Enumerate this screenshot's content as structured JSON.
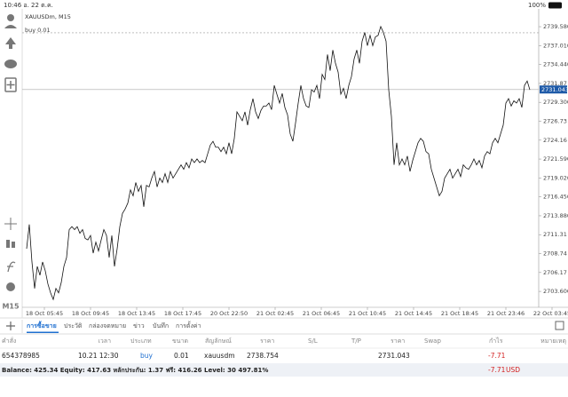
{
  "status_bar": {
    "time_date": "10:46  อ. 22 ต.ค.",
    "battery": "100%"
  },
  "sidebar": {
    "timeframe": "M15"
  },
  "chart_data": {
    "type": "line",
    "title": "XAUUSDm, M15",
    "order_line": {
      "label": "buy 0.01",
      "value": 2738.754
    },
    "price_line": {
      "value": 2731.043
    },
    "color": "#111111",
    "ylim": [
      2701.56,
      2742.0
    ],
    "yticks": [
      {
        "value": 2739.58,
        "label": "2739.580"
      },
      {
        "value": 2737.01,
        "label": "2737.010"
      },
      {
        "value": 2734.44,
        "label": "2734.440"
      },
      2731.87,
      {
        "value": 2729.3,
        "label": "2729.300"
      },
      2726.73,
      2724.16,
      {
        "value": 2721.59,
        "label": "2721.590"
      },
      {
        "value": 2719.02,
        "label": "2719.020"
      },
      {
        "value": 2716.45,
        "label": "2716.450"
      },
      {
        "value": 2713.88,
        "label": "2713.880"
      },
      2711.31,
      2708.74,
      2706.17,
      {
        "value": 2703.6,
        "label": "2703.600"
      }
    ],
    "x_labels": [
      "18 Oct 05:45",
      "18 Oct 09:45",
      "18 Oct 13:45",
      "18 Oct 17:45",
      "20 Oct 22:50",
      "21 Oct 02:45",
      "21 Oct 06:45",
      "21 Oct 10:45",
      "21 Oct 14:45",
      "21 Oct 18:45",
      "21 Oct 23:46",
      "22 Oct 03:45"
    ],
    "values": [
      2709.4,
      2712.7,
      2707.6,
      2704.0,
      2707.0,
      2705.8,
      2707.6,
      2706.4,
      2704.6,
      2703.4,
      2702.5,
      2704.0,
      2703.4,
      2704.8,
      2707.0,
      2708.2,
      2712.0,
      2712.4,
      2712.0,
      2712.4,
      2711.5,
      2712.0,
      2710.8,
      2710.6,
      2711.2,
      2708.8,
      2710.3,
      2709.1,
      2710.6,
      2712.0,
      2711.2,
      2708.2,
      2711.2,
      2707.0,
      2709.4,
      2712.4,
      2714.2,
      2714.8,
      2715.6,
      2717.4,
      2716.6,
      2718.4,
      2717.2,
      2718.0,
      2715.1,
      2718.0,
      2717.8,
      2719.0,
      2719.9,
      2717.8,
      2719.0,
      2718.4,
      2719.6,
      2718.4,
      2719.9,
      2719.0,
      2719.6,
      2720.2,
      2720.8,
      2720.2,
      2721.1,
      2720.4,
      2721.6,
      2721.1,
      2721.6,
      2721.1,
      2721.4,
      2721.1,
      2722.3,
      2723.5,
      2724.0,
      2723.2,
      2723.2,
      2722.6,
      2723.2,
      2722.3,
      2723.8,
      2722.3,
      2724.4,
      2728.0,
      2727.4,
      2726.8,
      2728.0,
      2726.2,
      2728.3,
      2729.8,
      2728.0,
      2727.1,
      2728.2,
      2728.8,
      2728.8,
      2729.2,
      2728.3,
      2731.6,
      2730.4,
      2729.2,
      2730.5,
      2728.6,
      2727.6,
      2725.0,
      2724.0,
      2726.5,
      2729.2,
      2731.6,
      2729.8,
      2728.8,
      2728.6,
      2731.0,
      2730.7,
      2731.6,
      2729.8,
      2733.1,
      2732.4,
      2735.8,
      2733.6,
      2736.4,
      2734.6,
      2733.4,
      2730.4,
      2731.2,
      2729.8,
      2731.6,
      2732.8,
      2735.2,
      2736.4,
      2734.6,
      2737.6,
      2738.8,
      2737.0,
      2738.4,
      2737.0,
      2738.2,
      2738.4,
      2739.6,
      2738.8,
      2737.6,
      2731.0,
      2727.4,
      2720.8,
      2723.8,
      2720.8,
      2721.6,
      2720.8,
      2722.0,
      2719.9,
      2721.4,
      2722.6,
      2723.8,
      2724.4,
      2724.0,
      2722.6,
      2722.3,
      2720.2,
      2719.0,
      2717.8,
      2716.6,
      2717.2,
      2719.0,
      2719.6,
      2720.2,
      2719.0,
      2719.6,
      2720.2,
      2719.2,
      2720.8,
      2720.4,
      2720.2,
      2720.8,
      2721.6,
      2720.8,
      2721.4,
      2720.4,
      2722.0,
      2722.6,
      2722.3,
      2723.8,
      2724.4,
      2723.8,
      2725.0,
      2726.2,
      2729.2,
      2729.8,
      2728.8,
      2729.5,
      2729.2,
      2729.8,
      2728.6,
      2731.6,
      2732.2,
      2731.0
    ]
  },
  "tabs": [
    "การซื้อขาย",
    "ประวัติ",
    "กล่องจดหมาย",
    "ข่าว",
    "บันทึก",
    "การตั้งค่า"
  ],
  "table": {
    "header": {
      "order": "คำสั่ง",
      "time": "เวลา",
      "type": "ประเภท",
      "size": "ขนาด",
      "symbol": "สัญลักษณ์",
      "open_price": "ราคา",
      "sl": "S/L",
      "tp": "T/P",
      "price": "ราคา",
      "swap": "Swap",
      "profit": "กำไร",
      "comment": "หมายเหตุ"
    },
    "row": {
      "order": "654378985",
      "time": "10.21 12:30",
      "type": "buy",
      "size": "0.01",
      "symbol": "xauusdm",
      "open_price": "2738.754",
      "price": "2731.043",
      "profit": "-7.71"
    }
  },
  "summary": {
    "text": "Balance: 425.34 Equity: 417.63 หลักประกัน: 1.37 ฟรี: 416.26 Level: 30 497.81%",
    "profit": "-7.71",
    "currency": "USD"
  }
}
